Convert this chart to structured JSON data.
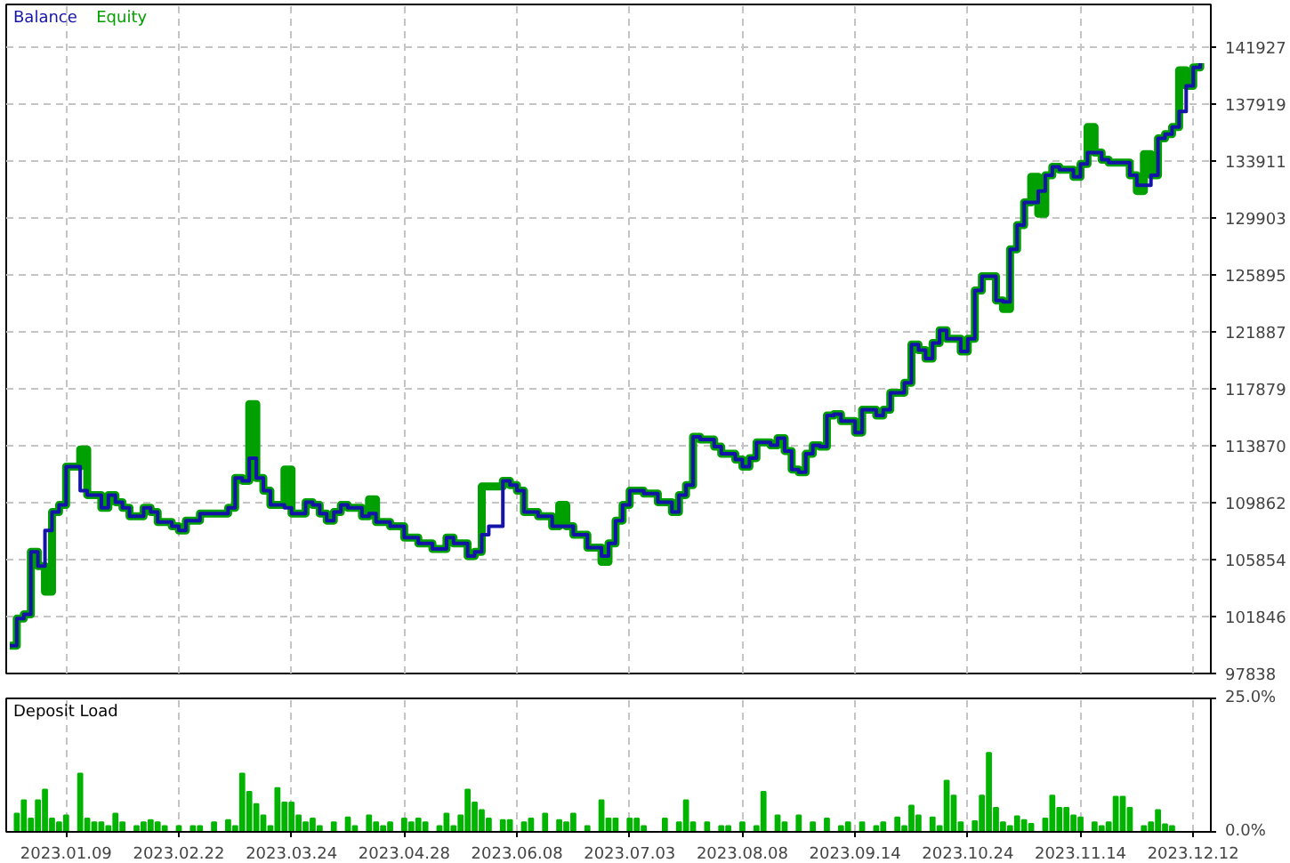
{
  "chart_data": [
    {
      "type": "step",
      "legend": "top left",
      "grid": true,
      "tick_labels": "y",
      "ylim": [
        97838,
        144930
      ],
      "categories": [
        null,
        null,
        null,
        null,
        null,
        null,
        null,
        null,
        "2023.01.09",
        null,
        null,
        null,
        null,
        null,
        null,
        null,
        null,
        null,
        null,
        null,
        null,
        null,
        null,
        null,
        "2023.02.22",
        null,
        null,
        null,
        null,
        null,
        null,
        null,
        null,
        null,
        null,
        null,
        null,
        null,
        null,
        null,
        "2023.03.24",
        null,
        null,
        null,
        null,
        null,
        null,
        null,
        null,
        null,
        null,
        null,
        null,
        null,
        null,
        null,
        "2023.04.28",
        null,
        null,
        null,
        null,
        null,
        null,
        null,
        null,
        null,
        null,
        null,
        null,
        null,
        null,
        null,
        "2023.06.08",
        null,
        null,
        null,
        null,
        null,
        null,
        null,
        null,
        null,
        null,
        null,
        null,
        null,
        null,
        null,
        "2023.07.03",
        null,
        null,
        null,
        null,
        null,
        null,
        null,
        null,
        null,
        null,
        null,
        null,
        null,
        null,
        null,
        "2023.08.08",
        null,
        null,
        null,
        null,
        null,
        null,
        null,
        null,
        null,
        null,
        null,
        null,
        null,
        null,
        null,
        "2023.09.14",
        null,
        null,
        null,
        null,
        null,
        null,
        null,
        null,
        null,
        null,
        null,
        null,
        null,
        null,
        null,
        "2023.10.24",
        null,
        null,
        null,
        null,
        null,
        null,
        null,
        null,
        null,
        null,
        null,
        null,
        null,
        null,
        null,
        "2023.11.14",
        null,
        null,
        null,
        null,
        null,
        null,
        null,
        null,
        null,
        null,
        null,
        null,
        null,
        null,
        null,
        "2023.12.12",
        null,
        null
      ],
      "yticks": [
        97838,
        101846,
        105854,
        109862,
        113870,
        117879,
        121887,
        125895,
        129903,
        133911,
        137919,
        141927
      ],
      "series": [
        {
          "name": "Balance",
          "color": "#1414a8",
          "values": [
            99800,
            101700,
            102000,
            106400,
            105400,
            107900,
            109200,
            109700,
            112400,
            112400,
            110700,
            110400,
            110400,
            109500,
            110400,
            109900,
            109500,
            108900,
            108900,
            109500,
            109200,
            108500,
            108500,
            108200,
            107900,
            108600,
            108600,
            109100,
            109100,
            109100,
            109100,
            109500,
            111600,
            111400,
            113000,
            111600,
            110700,
            109700,
            109700,
            109500,
            109100,
            109100,
            109900,
            109700,
            109100,
            108600,
            109200,
            109700,
            109500,
            109500,
            108900,
            109100,
            108500,
            108500,
            108200,
            108200,
            107400,
            107400,
            107000,
            107000,
            106600,
            106600,
            107400,
            107000,
            107000,
            106100,
            106400,
            107600,
            108200,
            108200,
            111400,
            111100,
            110700,
            109200,
            109200,
            108900,
            108900,
            108200,
            108200,
            108200,
            107600,
            107600,
            106700,
            106700,
            106100,
            107000,
            108600,
            109700,
            110700,
            110700,
            110500,
            110500,
            109900,
            109900,
            109200,
            110400,
            111100,
            114500,
            114300,
            114300,
            113800,
            113300,
            113300,
            112900,
            112400,
            113000,
            114100,
            114100,
            113900,
            114400,
            113500,
            112200,
            112000,
            113300,
            113900,
            113800,
            116000,
            116100,
            115600,
            115600,
            114800,
            116400,
            116400,
            116000,
            116400,
            117600,
            117600,
            118300,
            121000,
            120600,
            120000,
            121100,
            122000,
            121400,
            121400,
            120500,
            121400,
            124800,
            125800,
            125800,
            124100,
            124000,
            127700,
            129400,
            131000,
            131000,
            131800,
            132900,
            133500,
            133300,
            133300,
            132800,
            133700,
            134500,
            134500,
            134000,
            133800,
            133800,
            133800,
            132900,
            132200,
            132200,
            132900,
            135500,
            135800,
            136300,
            137400,
            139200,
            140500,
            140800,
            null
          ]
        },
        {
          "name": "Equity",
          "color": "#00a000",
          "values": [
            99800,
            101700,
            102000,
            106400,
            105400,
            103600,
            109200,
            109700,
            112400,
            112400,
            113600,
            110400,
            110400,
            109500,
            110400,
            109900,
            109500,
            108900,
            108900,
            109500,
            109200,
            108500,
            108500,
            108200,
            107900,
            108600,
            108600,
            109100,
            109100,
            109100,
            109100,
            109500,
            111600,
            111400,
            116800,
            111600,
            110700,
            109700,
            109700,
            112200,
            109100,
            109100,
            109900,
            109700,
            109100,
            108600,
            109200,
            109700,
            109500,
            109500,
            108900,
            110100,
            108500,
            108500,
            108200,
            108200,
            107400,
            107400,
            107000,
            107000,
            106600,
            106600,
            107400,
            107000,
            107000,
            106100,
            106400,
            111000,
            111000,
            111000,
            111400,
            111100,
            110700,
            109200,
            109200,
            108900,
            108900,
            108200,
            109700,
            108200,
            107600,
            107600,
            106700,
            106700,
            105700,
            107000,
            108600,
            109700,
            110700,
            110700,
            110500,
            110500,
            109900,
            109900,
            109200,
            110400,
            111100,
            114500,
            114300,
            114300,
            113800,
            113300,
            113300,
            112900,
            112400,
            113000,
            114100,
            114100,
            113900,
            114400,
            113500,
            112200,
            112000,
            113300,
            113900,
            113800,
            116000,
            116100,
            115600,
            115600,
            114800,
            116400,
            116400,
            116000,
            116400,
            117600,
            117600,
            118300,
            121000,
            120600,
            120000,
            121100,
            122000,
            121400,
            121400,
            120500,
            121400,
            124800,
            125800,
            125800,
            124100,
            123500,
            127700,
            129400,
            131000,
            132800,
            130200,
            132900,
            133500,
            133300,
            133300,
            132800,
            133700,
            136300,
            134500,
            134000,
            133800,
            133800,
            133800,
            132900,
            131800,
            134400,
            132900,
            135500,
            135800,
            136300,
            140300,
            139200,
            140500,
            140800,
            null
          ]
        }
      ]
    },
    {
      "type": "bar",
      "title": "Deposit Load",
      "grid": "x",
      "ylim": [
        0,
        25
      ],
      "categories": [
        null,
        null,
        null,
        null,
        null,
        null,
        null,
        null,
        "2023.01.09",
        null,
        null,
        null,
        null,
        null,
        null,
        null,
        null,
        null,
        null,
        null,
        null,
        null,
        null,
        null,
        "2023.02.22",
        null,
        null,
        null,
        null,
        null,
        null,
        null,
        null,
        null,
        null,
        null,
        null,
        null,
        null,
        null,
        "2023.03.24",
        null,
        null,
        null,
        null,
        null,
        null,
        null,
        null,
        null,
        null,
        null,
        null,
        null,
        null,
        null,
        "2023.04.28",
        null,
        null,
        null,
        null,
        null,
        null,
        null,
        null,
        null,
        null,
        null,
        null,
        null,
        null,
        null,
        "2023.06.08",
        null,
        null,
        null,
        null,
        null,
        null,
        null,
        null,
        null,
        null,
        null,
        null,
        null,
        null,
        null,
        "2023.07.03",
        null,
        null,
        null,
        null,
        null,
        null,
        null,
        null,
        null,
        null,
        null,
        null,
        null,
        null,
        null,
        "2023.08.08",
        null,
        null,
        null,
        null,
        null,
        null,
        null,
        null,
        null,
        null,
        null,
        null,
        null,
        null,
        null,
        "2023.09.14",
        null,
        null,
        null,
        null,
        null,
        null,
        null,
        null,
        null,
        null,
        null,
        null,
        null,
        null,
        null,
        "2023.10.24",
        null,
        null,
        null,
        null,
        null,
        null,
        null,
        null,
        null,
        null,
        null,
        null,
        null,
        null,
        null,
        "2023.11.14",
        null,
        null,
        null,
        null,
        null,
        null,
        null,
        null,
        null,
        null,
        null,
        null,
        null,
        null,
        null,
        "2023.12.12",
        null,
        null
      ],
      "yticks": [
        {
          "value": 0,
          "label": "0.0%"
        },
        {
          "value": 25,
          "label": "25.0%"
        }
      ],
      "series": [
        {
          "color": "#00b400",
          "values": [
            null,
            3.4,
            5.9,
            2.5,
            5.9,
            7.9,
            2.5,
            1.8,
            3.1,
            null,
            10.9,
            2.5,
            1.8,
            1.8,
            1.1,
            3.4,
            1.8,
            null,
            1.1,
            1.8,
            2.2,
            1.8,
            1.1,
            null,
            1.1,
            null,
            1.1,
            1.1,
            null,
            1.8,
            null,
            2.2,
            1.1,
            10.9,
            7.5,
            5.2,
            3.1,
            1.1,
            8.2,
            5.5,
            5.5,
            3.1,
            1.8,
            2.5,
            1.1,
            null,
            1.8,
            null,
            2.7,
            1.1,
            null,
            3.1,
            1.8,
            1.1,
            1.8,
            null,
            2.5,
            1.8,
            2.5,
            1.8,
            null,
            1.1,
            3.4,
            1.1,
            3.1,
            7.9,
            5.5,
            4.1,
            2.5,
            null,
            2.2,
            2.2,
            null,
            1.8,
            2.5,
            null,
            3.4,
            null,
            2.2,
            1.8,
            3.4,
            null,
            1.1,
            null,
            5.9,
            2.5,
            2.5,
            null,
            2.5,
            2.5,
            1.1,
            null,
            null,
            2.5,
            null,
            1.8,
            5.9,
            1.8,
            null,
            1.8,
            null,
            1.1,
            1.1,
            null,
            1.8,
            null,
            1.1,
            7.5,
            null,
            3.1,
            1.8,
            null,
            3.1,
            null,
            1.8,
            null,
            2.5,
            null,
            1.1,
            1.8,
            null,
            1.8,
            null,
            1.1,
            1.8,
            null,
            2.7,
            1.1,
            4.9,
            3.1,
            null,
            2.7,
            1.1,
            9.6,
            6.8,
            1.8,
            null,
            2.0,
            6.8,
            14.8,
            4.5,
            1.8,
            1.1,
            2.9,
            2.2,
            1.5,
            null,
            2.5,
            6.8,
            4.5,
            4.5,
            3.1,
            2.7,
            null,
            1.8,
            1.1,
            1.8,
            6.6,
            6.6,
            4.5,
            null,
            1.1,
            1.8,
            4.1,
            1.4,
            1.1,
            null,
            null,
            null,
            null,
            null
          ]
        }
      ]
    }
  ]
}
